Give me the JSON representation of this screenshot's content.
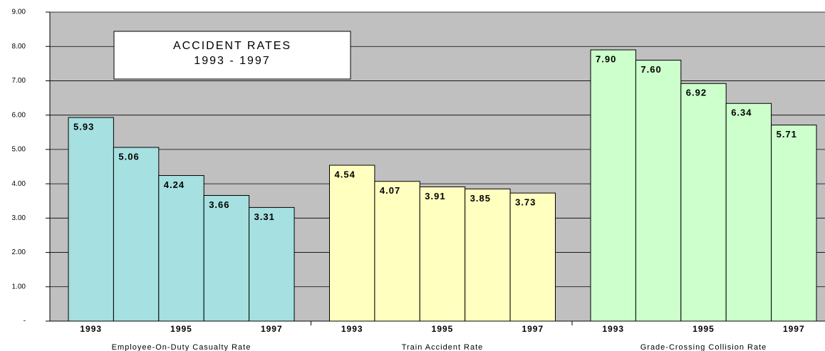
{
  "chart_data": {
    "type": "bar",
    "title": "ACCIDENT RATES",
    "subtitle": "1993 - 1997",
    "ylim": [
      0,
      9
    ],
    "yticks": [
      {
        "value": 0,
        "label": "-"
      },
      {
        "value": 1,
        "label": "1.00"
      },
      {
        "value": 2,
        "label": "2.00"
      },
      {
        "value": 3,
        "label": "3.00"
      },
      {
        "value": 4,
        "label": "4.00"
      },
      {
        "value": 5,
        "label": "5.00"
      },
      {
        "value": 6,
        "label": "6.00"
      },
      {
        "value": 7,
        "label": "7.00"
      },
      {
        "value": 8,
        "label": "8.00"
      },
      {
        "value": 9,
        "label": "9.00"
      }
    ],
    "grid": true,
    "groups": [
      {
        "name": "Employee-On-Duty Casualty Rate",
        "color": "#a6e0e0",
        "categories": [
          "1993",
          null,
          "1995",
          null,
          "1997"
        ],
        "values": [
          5.93,
          5.06,
          4.24,
          3.66,
          3.31
        ],
        "value_labels": [
          "5.93",
          "5.06",
          "4.24",
          "3.66",
          "3.31"
        ]
      },
      {
        "name": "Train Accident Rate",
        "color": "#ffffc0",
        "categories": [
          "1993",
          null,
          "1995",
          null,
          "1997"
        ],
        "values": [
          4.54,
          4.07,
          3.91,
          3.85,
          3.73
        ],
        "value_labels": [
          "4.54",
          "4.07",
          "3.91",
          "3.85",
          "3.73"
        ]
      },
      {
        "name": "Grade-Crossing Collision Rate",
        "color": "#ccffcc",
        "categories": [
          "1993",
          null,
          "1995",
          null,
          "1997"
        ],
        "values": [
          7.9,
          7.6,
          6.92,
          6.34,
          5.71
        ],
        "value_labels": [
          "7.90",
          "7.60",
          "6.92",
          "6.34",
          "5.71"
        ]
      }
    ]
  }
}
